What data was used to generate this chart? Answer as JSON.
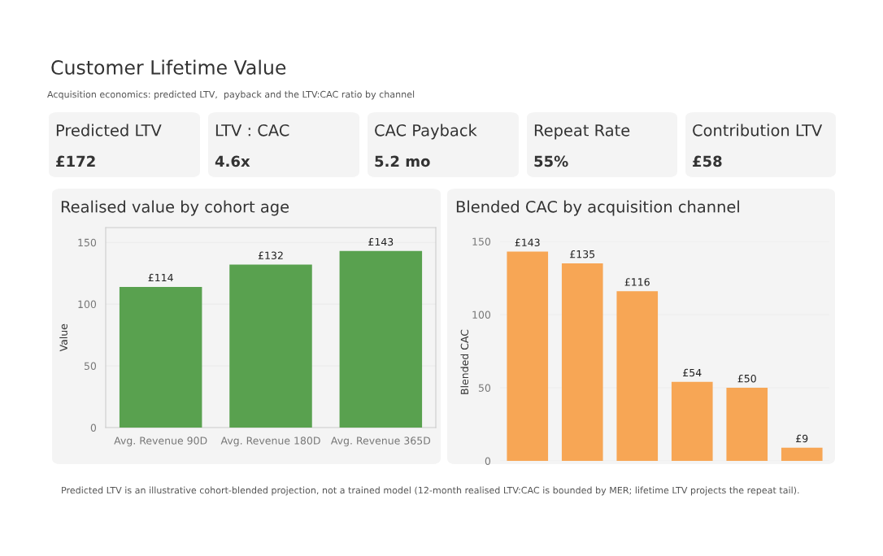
{
  "chart_data": [
    {
      "type": "other",
      "title": "Customer Lifetime Value",
      "subtitle": "Acquisition economics: predicted LTV,  payback and the LTV:CAC ratio by channel",
      "annotations": [
        "Predicted LTV is an illustrative cohort-blended projection, not a trained model (12-month realised LTV:CAC is bounded by MER; lifetime LTV projects the repeat tail)."
      ]
    },
    {
      "type": "other",
      "title": "Predicted LTV",
      "annotations": [
        "£172"
      ]
    },
    {
      "type": "other",
      "title": "LTV : CAC",
      "annotations": [
        "4.6x"
      ]
    },
    {
      "type": "other",
      "title": "CAC Payback",
      "annotations": [
        "5.2 mo"
      ]
    },
    {
      "type": "other",
      "title": "Repeat Rate",
      "annotations": [
        "55%"
      ]
    },
    {
      "type": "other",
      "title": "Contribution LTV",
      "annotations": [
        "£58"
      ]
    },
    {
      "type": "bar",
      "title": "Realised value by cohort age",
      "ylabel": "Value",
      "categories": [
        "Avg. Revenue 90D",
        "Avg. Revenue 180D",
        "Avg. Revenue 365D"
      ],
      "values": [
        114,
        132,
        143
      ],
      "value_labels": [
        "£114",
        "£132",
        "£143"
      ],
      "color": "#59a14f",
      "ylim": [
        0,
        162
      ],
      "yticks": [
        0,
        50,
        100,
        150
      ],
      "grid": "y"
    },
    {
      "type": "bar",
      "title": "Blended CAC by acquisition channel",
      "ylabel": "Blended CAC",
      "categories": [
        null,
        null,
        null,
        null,
        null,
        null
      ],
      "values": [
        143,
        135,
        116,
        54,
        50,
        9
      ],
      "value_labels": [
        "£143",
        "£135",
        "£116",
        "£54",
        "£50",
        "£9"
      ],
      "color": "#f7a655",
      "ylim": [
        0,
        150
      ],
      "yticks": [
        0,
        50,
        100,
        150
      ],
      "grid": "y"
    }
  ]
}
